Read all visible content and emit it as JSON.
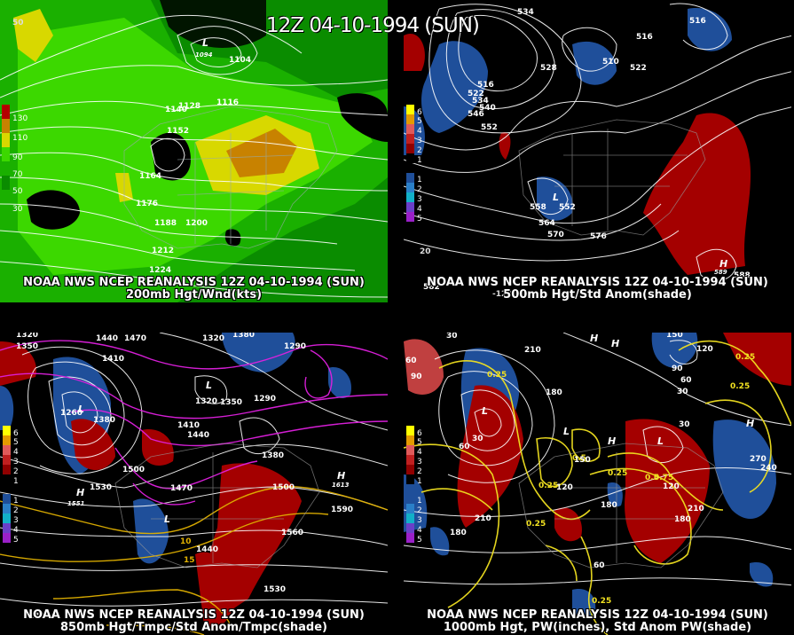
{
  "main_title": "12Z 04-10-1994 (SUN)",
  "panels": [
    {
      "id": "200mb",
      "caption_line1": "NOAA NWS NCEP REANALYSIS 12Z 04-10-1994 (SUN)",
      "caption_line2": "200mb Hgt/Wnd(kts)",
      "legend": [
        "130",
        "110",
        "90",
        "70",
        "50",
        "30"
      ],
      "legend_colors": [
        "#b40000",
        "#c88200",
        "#d8d800",
        "#3cd800",
        "#1ab000",
        "#0a8c00"
      ],
      "contour_labels": [
        "1104",
        "1116",
        "1128",
        "1140",
        "1152",
        "1164",
        "1176",
        "1188",
        "1200",
        "1212",
        "1224"
      ],
      "extra_labels": [
        "L",
        "1094",
        "50"
      ]
    },
    {
      "id": "500mb",
      "caption_line1": "NOAA NWS NCEP REANALYSIS 12Z 04-10-1994 (SUN)",
      "caption_line2": "500mb Hgt/Std Anom(shade)",
      "legend": [
        "6",
        "5",
        "4",
        "3",
        "2",
        "1",
        "1",
        "2",
        "3",
        "4",
        "5"
      ],
      "contour_labels": [
        "534",
        "516",
        "516",
        "510",
        "522",
        "528",
        "540",
        "546",
        "552",
        "522",
        "516",
        "558",
        "552",
        "564",
        "570",
        "576",
        "588",
        "534",
        "20"
      ],
      "extra_labels": [
        "L",
        "H",
        "589",
        "-120",
        "582"
      ]
    },
    {
      "id": "850mb",
      "caption_line1": "NOAA NWS NCEP REANALYSIS 12Z 04-10-1994 (SUN)",
      "caption_line2": "850mb Hgt/Tmpc/Std Anom/Tmpc(shade)",
      "legend": [
        "6",
        "5",
        "4",
        "3",
        "2",
        "1",
        "1",
        "2",
        "3",
        "4",
        "5"
      ],
      "contour_labels": [
        "1320",
        "1350",
        "1410",
        "1440",
        "1470",
        "1320",
        "1380",
        "1290",
        "1260",
        "1350",
        "1380",
        "1410",
        "1440",
        "1380",
        "1500",
        "1530",
        "1470",
        "1500",
        "1590",
        "1560",
        "1440",
        "1530",
        "10",
        "15",
        "1320",
        "1290"
      ],
      "extra_labels": [
        "L",
        "L",
        "L",
        "H",
        "H",
        "1551",
        "1613",
        "-130"
      ]
    },
    {
      "id": "1000mb",
      "caption_line1": "NOAA NWS NCEP REANALYSIS 12Z 04-10-1994 (SUN)",
      "caption_line2": "1000mb Hgt, PW(inches), Std Anom PW(shade)",
      "legend": [
        "6",
        "5",
        "4",
        "3",
        "2",
        "1",
        "1",
        "2",
        "3",
        "4",
        "5"
      ],
      "contour_labels": [
        "30",
        "60",
        "90",
        "180",
        "210",
        "150",
        "120",
        "90",
        "60",
        "30",
        "0.25",
        "0.25",
        "0.25",
        "0.25",
        "0.25",
        "0.5",
        "0.5",
        "0.75",
        "0.25",
        "180",
        "120",
        "180",
        "210",
        "240",
        "270",
        "0.25",
        "60",
        "30",
        "180",
        "210",
        "60",
        "30",
        "120",
        "150"
      ],
      "extra_labels": [
        "H",
        "L",
        "L",
        "L",
        "H",
        "H",
        "H"
      ]
    }
  ]
}
